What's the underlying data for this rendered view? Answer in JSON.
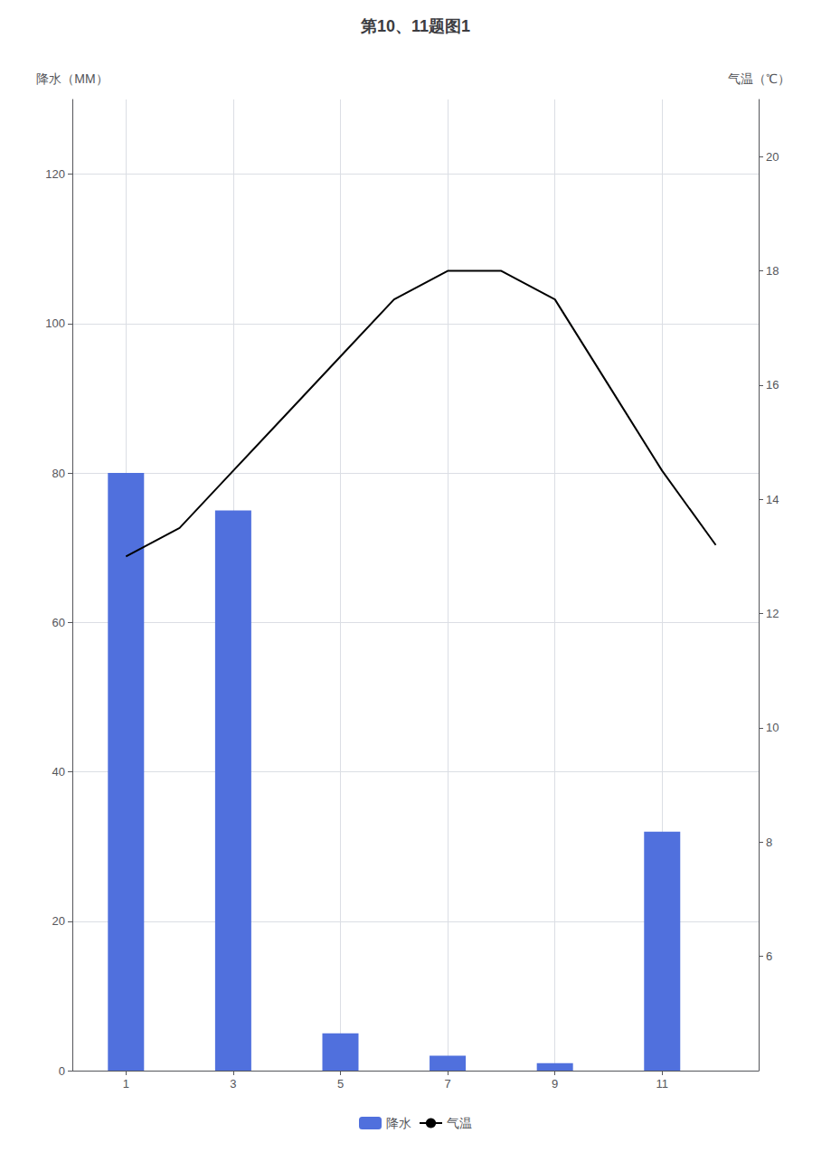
{
  "chart_data": {
    "type": "bar",
    "title": "第10、11题图1",
    "ylabel": "降水（MM）",
    "y2label": "气温（℃）",
    "xlim": [
      0,
      12.8
    ],
    "xticks": [
      1,
      3,
      5,
      7,
      9,
      11
    ],
    "ylim": [
      0,
      130
    ],
    "yticks": [
      0,
      20,
      40,
      60,
      80,
      100,
      120
    ],
    "y2lim": [
      4,
      21
    ],
    "y2ticks": [
      6,
      8,
      10,
      12,
      14,
      16,
      18,
      20
    ],
    "grid": true,
    "legend": "bottom",
    "series": [
      {
        "name": "降水",
        "type": "bar",
        "x": [
          1,
          3,
          5,
          7,
          9,
          11
        ],
        "values": [
          80,
          75,
          5,
          2,
          1,
          32
        ]
      },
      {
        "name": "气温",
        "type": "line",
        "axis": "y2",
        "color": "#000000",
        "x": [
          1,
          2,
          3,
          4,
          5,
          6,
          7,
          8,
          9,
          10,
          11,
          12
        ],
        "values": [
          13.0,
          13.5,
          14.5,
          15.5,
          16.5,
          17.5,
          18.0,
          18.0,
          17.5,
          16.0,
          14.5,
          13.2
        ]
      }
    ]
  }
}
